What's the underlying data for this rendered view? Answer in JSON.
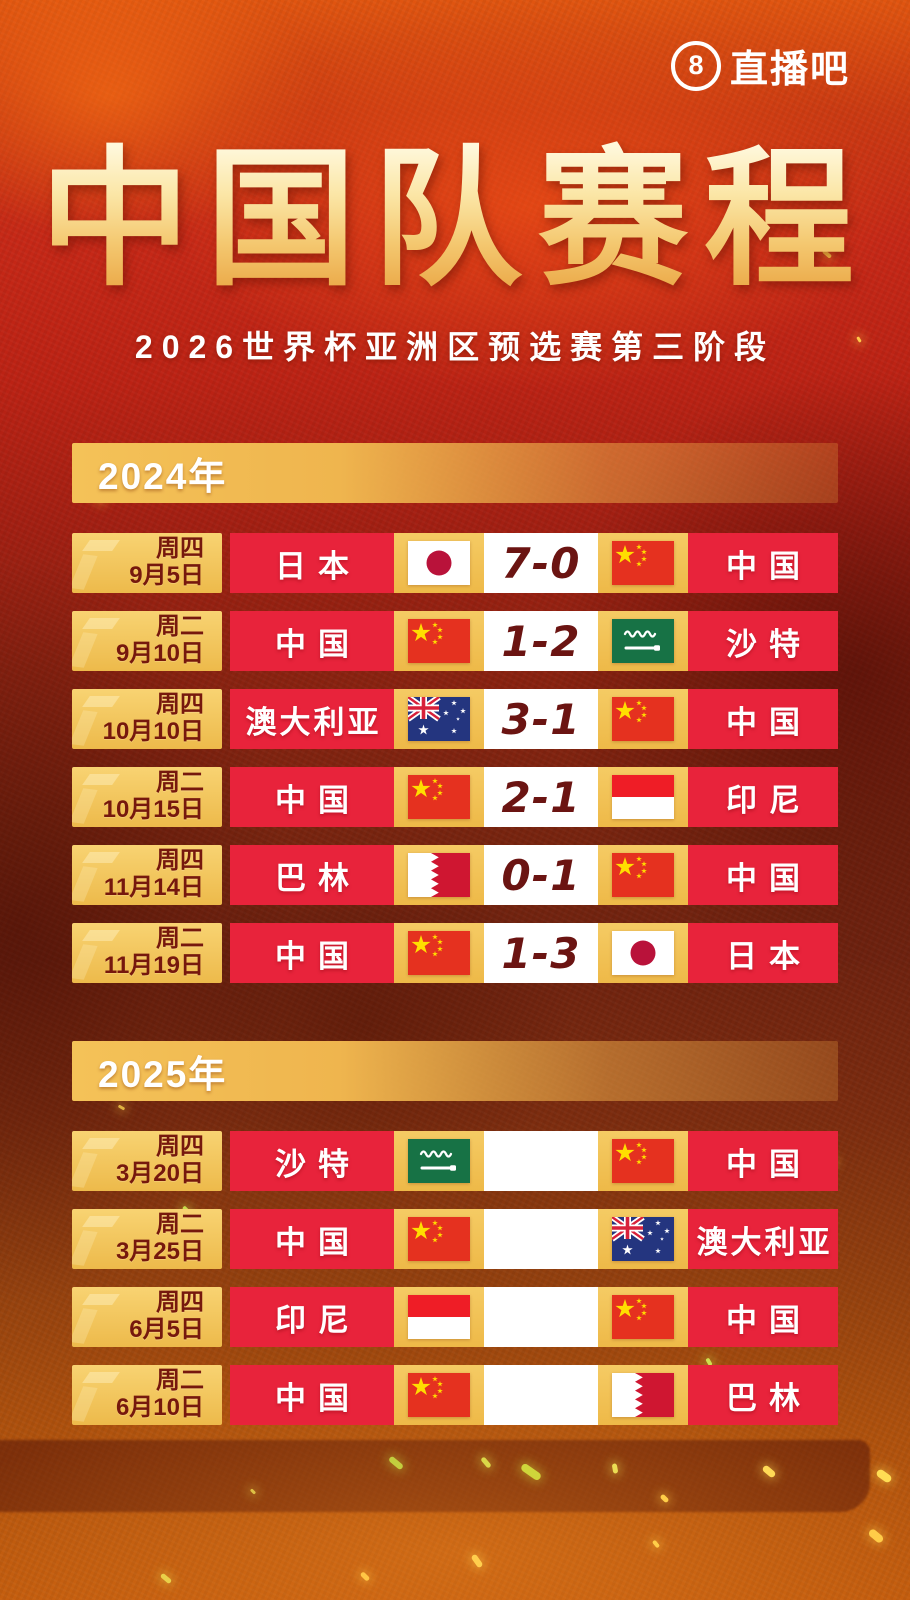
{
  "logo": {
    "badge_number": "8",
    "name": "直播吧"
  },
  "title": "中国队赛程",
  "subtitle": "2026世界杯亚洲区预选赛第三阶段",
  "colors": {
    "background_red": "#a21f12",
    "cell_gold": "#f2c155",
    "cell_red": "#e8233b",
    "score_text": "#6b1412",
    "date_text": "#76180d",
    "title_gold_top": "#fff8dc",
    "title_gold_bottom": "#e9a23f",
    "text_white": "#ffffff"
  },
  "sections": [
    {
      "year_label": "2024年",
      "matches": [
        {
          "weekday": "周四",
          "date": "9月5日",
          "home": "日本",
          "home_flag": "japan",
          "score": "7-0",
          "away": "中国",
          "away_flag": "china"
        },
        {
          "weekday": "周二",
          "date": "9月10日",
          "home": "中国",
          "home_flag": "china",
          "score": "1-2",
          "away": "沙特",
          "away_flag": "saudi-arabia"
        },
        {
          "weekday": "周四",
          "date": "10月10日",
          "home": "澳大利亚",
          "home_flag": "australia",
          "score": "3-1",
          "away": "中国",
          "away_flag": "china"
        },
        {
          "weekday": "周二",
          "date": "10月15日",
          "home": "中国",
          "home_flag": "china",
          "score": "2-1",
          "away": "印尼",
          "away_flag": "indonesia"
        },
        {
          "weekday": "周四",
          "date": "11月14日",
          "home": "巴林",
          "home_flag": "bahrain",
          "score": "0-1",
          "away": "中国",
          "away_flag": "china"
        },
        {
          "weekday": "周二",
          "date": "11月19日",
          "home": "中国",
          "home_flag": "china",
          "score": "1-3",
          "away": "日本",
          "away_flag": "japan"
        }
      ]
    },
    {
      "year_label": "2025年",
      "matches": [
        {
          "weekday": "周四",
          "date": "3月20日",
          "home": "沙特",
          "home_flag": "saudi-arabia",
          "score": "",
          "away": "中国",
          "away_flag": "china"
        },
        {
          "weekday": "周二",
          "date": "3月25日",
          "home": "中国",
          "home_flag": "china",
          "score": "",
          "away": "澳大利亚",
          "away_flag": "australia"
        },
        {
          "weekday": "周四",
          "date": "6月5日",
          "home": "印尼",
          "home_flag": "indonesia",
          "score": "",
          "away": "中国",
          "away_flag": "china"
        },
        {
          "weekday": "周二",
          "date": "6月10日",
          "home": "中国",
          "home_flag": "china",
          "score": "",
          "away": "巴林",
          "away_flag": "bahrain"
        }
      ]
    }
  ]
}
